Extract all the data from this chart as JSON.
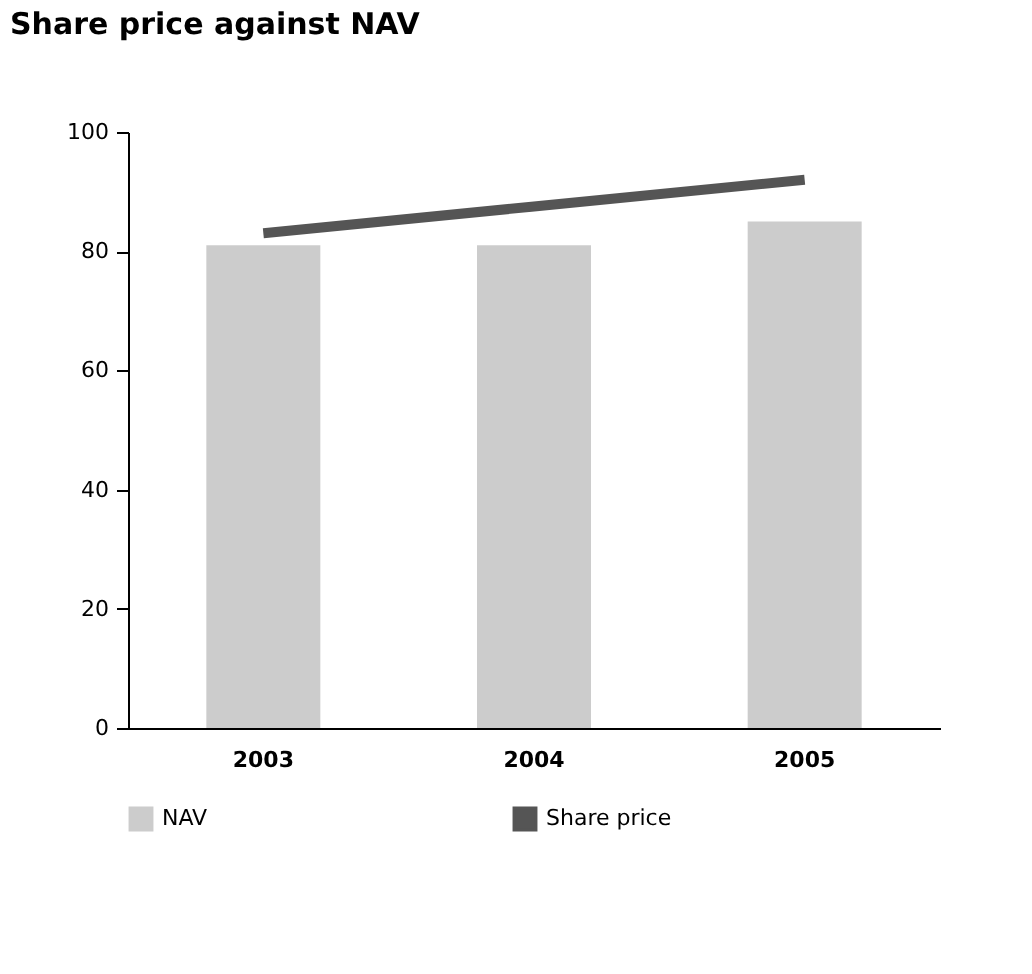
{
  "chart_data": {
    "type": "bar",
    "title": "Share price against NAV",
    "categories": [
      "2003",
      "2004",
      "2005"
    ],
    "series": [
      {
        "name": "NAV",
        "color": "#cccccc",
        "values": [
          81,
          81,
          85
        ]
      },
      {
        "name": "Share price",
        "type": "line",
        "color": "#555555",
        "values": [
          83,
          87.5,
          92
        ]
      }
    ],
    "ylim": [
      0,
      100
    ],
    "yticks": [
      0,
      20,
      40,
      60,
      80,
      100
    ],
    "grid": false,
    "legend": "bottom"
  }
}
